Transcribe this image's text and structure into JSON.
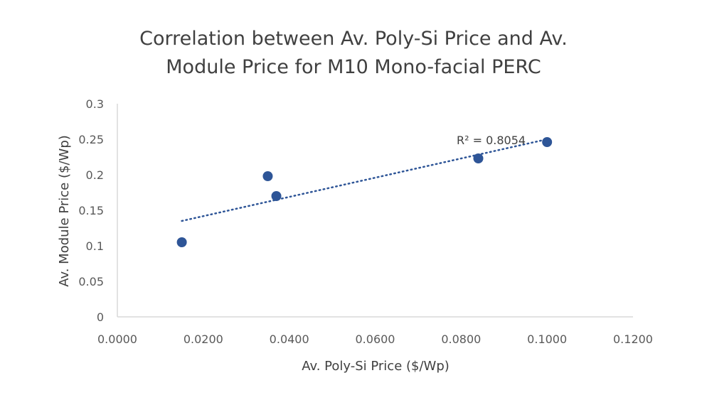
{
  "chart_data": {
    "type": "scatter",
    "title": "Correlation between Av. Poly-Si Price and Av. Module Price for M10 Mono-facial PERC",
    "title_lines": [
      "Correlation between Av. Poly-Si Price and Av.",
      "Module Price for M10 Mono-facial PERC"
    ],
    "xlabel": "Av. Poly-Si Price ($/Wp)",
    "ylabel": "Av. Module Price ($/Wp)",
    "xlim": [
      0.0,
      0.12
    ],
    "ylim": [
      0.0,
      0.3
    ],
    "x_ticks": [
      0.0,
      0.02,
      0.04,
      0.06,
      0.08,
      0.1,
      0.12
    ],
    "x_tick_labels": [
      "0.0000",
      "0.0200",
      "0.0400",
      "0.0600",
      "0.0800",
      "0.1000",
      "0.1200"
    ],
    "y_ticks": [
      0.0,
      0.05,
      0.1,
      0.15,
      0.2,
      0.25,
      0.3
    ],
    "y_tick_labels": [
      "0",
      "0.05",
      "0.1",
      "0.15",
      "0.2",
      "0.25",
      "0.3"
    ],
    "grid": false,
    "series": [
      {
        "name": "Av. Module Price",
        "color": "#2e5597",
        "points": [
          {
            "x": 0.015,
            "y": 0.105
          },
          {
            "x": 0.035,
            "y": 0.198
          },
          {
            "x": 0.037,
            "y": 0.17
          },
          {
            "x": 0.084,
            "y": 0.223
          },
          {
            "x": 0.1,
            "y": 0.246
          }
        ]
      }
    ],
    "trendline": {
      "type": "linear",
      "style": "dotted",
      "color": "#2e5597",
      "x_range": [
        0.015,
        0.1
      ],
      "y_range": [
        0.135,
        0.25
      ],
      "label": "R² = 0.8054"
    },
    "axis_color": "#d9d9d9"
  }
}
